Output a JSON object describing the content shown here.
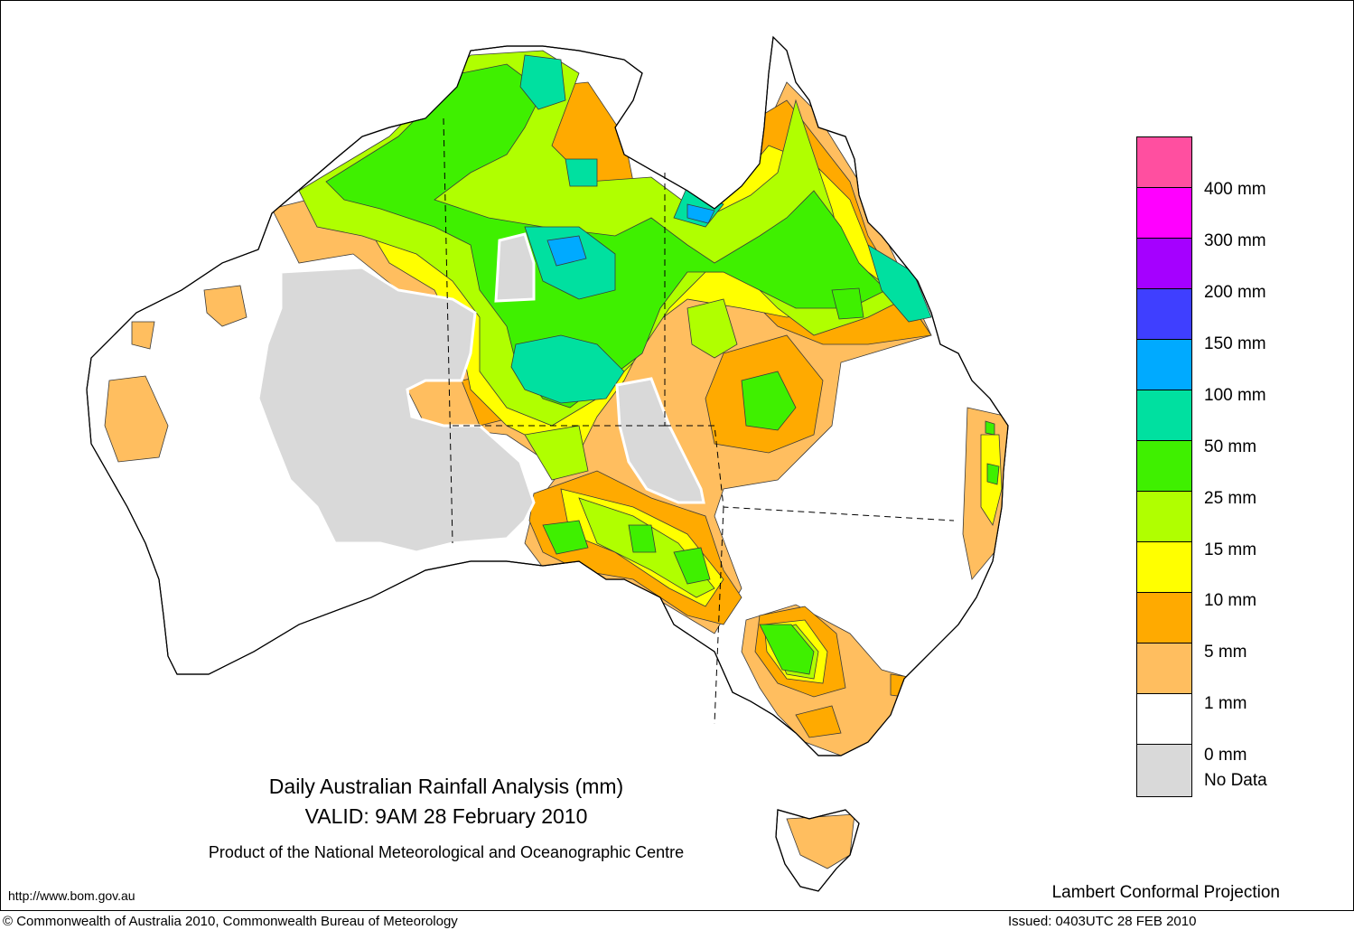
{
  "titles": {
    "line1": "Daily Australian Rainfall Analysis (mm)",
    "line2": "VALID: 9AM 28 February 2010",
    "line3": "Product of the National Meteorological and Oceanographic Centre"
  },
  "url": "http://www.bom.gov.au",
  "projection": "Lambert Conformal Projection",
  "footer": {
    "copyright": "© Commonwealth of Australia 2010, Commonwealth Bureau of Meteorology",
    "issued": "Issued: 0403UTC 28 FEB 2010"
  },
  "legend": {
    "swatch_colors": [
      "#ff4fa0",
      "#ff00ff",
      "#a500ff",
      "#3f3fff",
      "#00aaff",
      "#00e0a0",
      "#3ff000",
      "#b0ff00",
      "#ffff00",
      "#ffaa00",
      "#ffbe5f",
      "#ffffff",
      "#d9d9d9"
    ],
    "labels": [
      "400 mm",
      "300 mm",
      "200 mm",
      "150 mm",
      "100 mm",
      "50 mm",
      "25 mm",
      "15 mm",
      "10 mm",
      "5 mm",
      "1 mm",
      "0 mm",
      "No Data"
    ]
  },
  "colors": {
    "no_data": "#d9d9d9",
    "mm_1_5": "#ffbe5f",
    "mm_5_10": "#ffaa00",
    "mm_10_15": "#ffff00",
    "mm_15_25": "#b0ff00",
    "mm_25_50": "#3ff000",
    "mm_50_100": "#00e0a0",
    "mm_100_150": "#00aaff",
    "mm_150_200": "#3f3fff"
  }
}
